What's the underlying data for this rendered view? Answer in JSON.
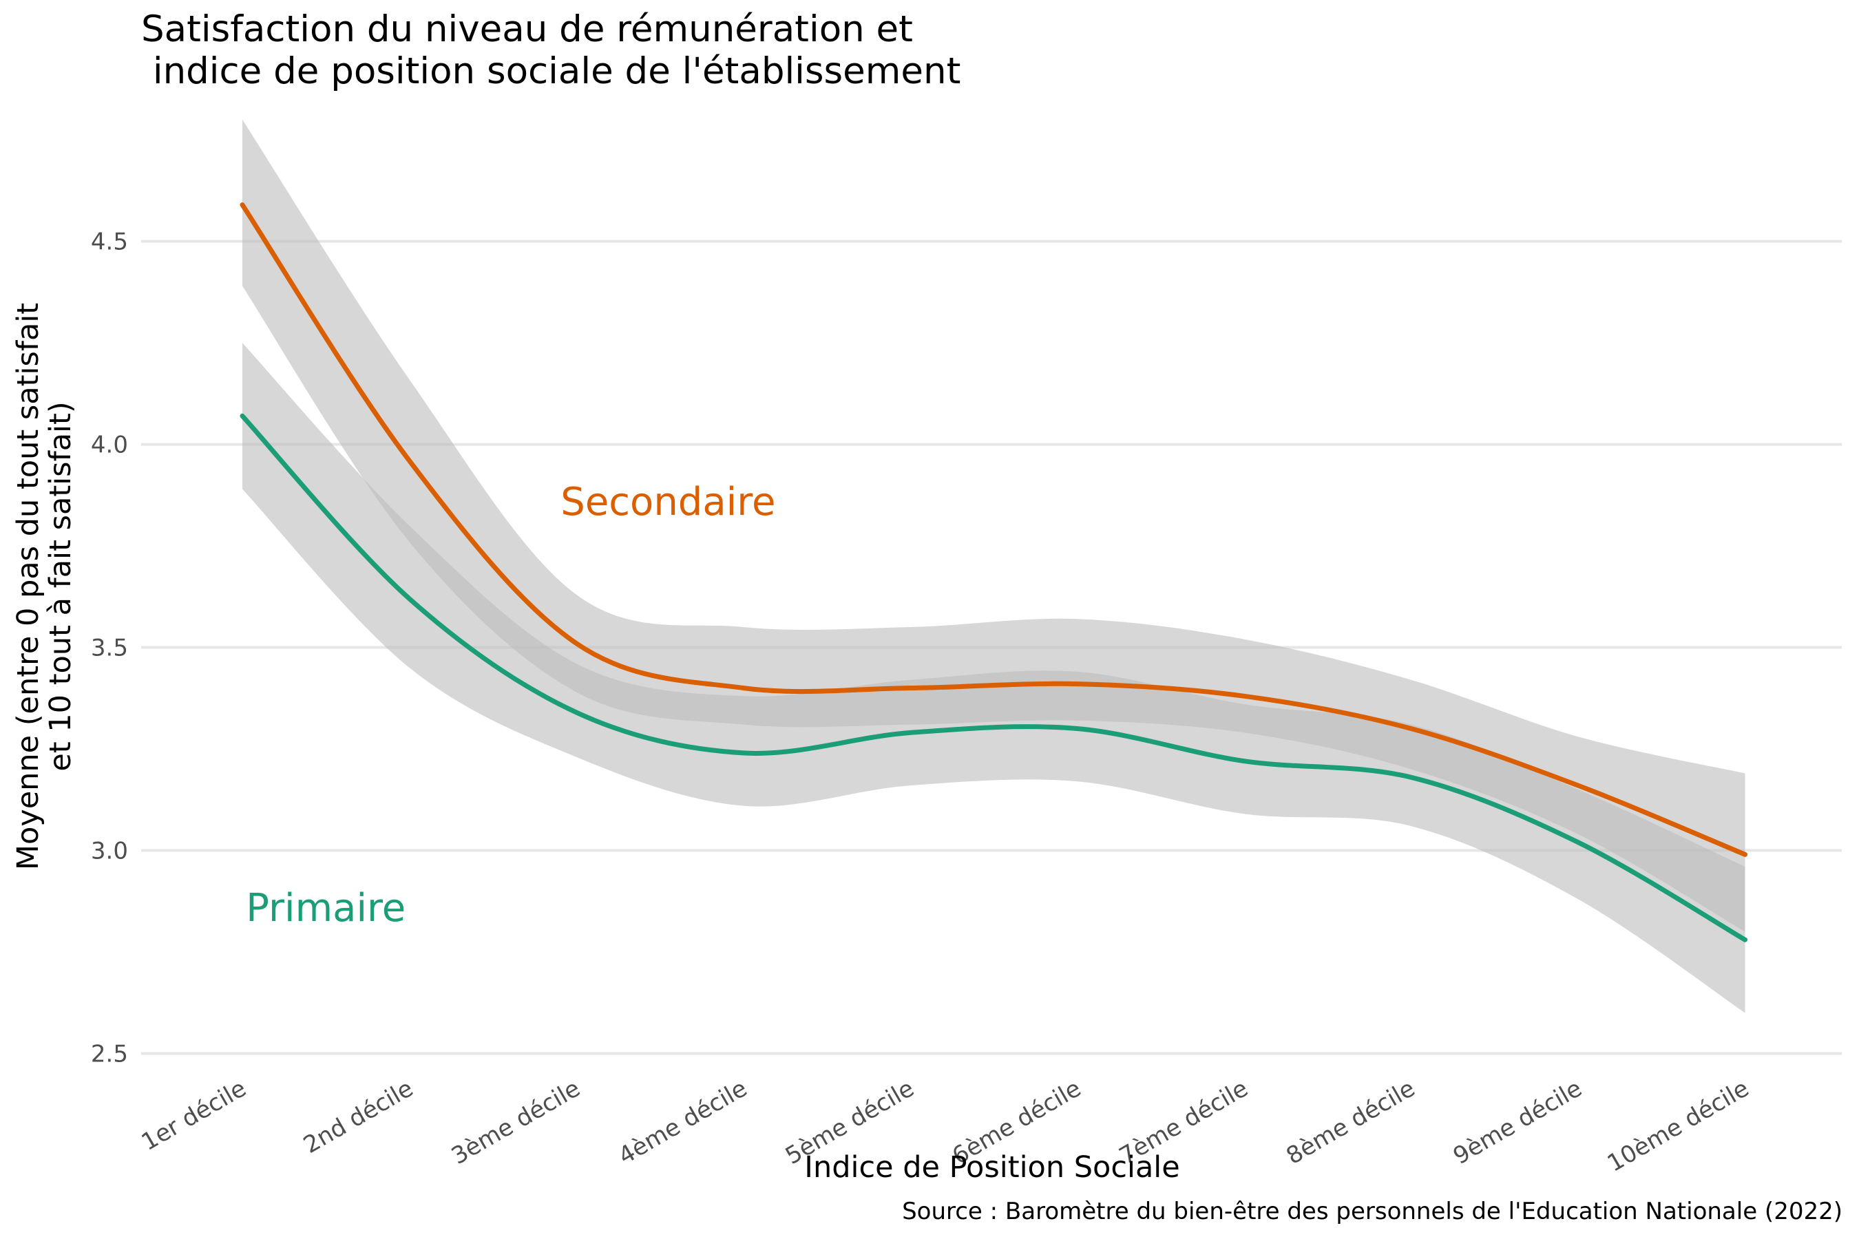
{
  "chart_data": {
    "type": "line",
    "title": [
      "Satisfaction du niveau de rémunération et",
      " indice de position sociale de l'établissement"
    ],
    "xlabel": "Indice de Position Sociale",
    "ylabel": [
      "Moyenne (entre 0 pas du tout satisfait",
      "et 10 tout à fait satisfait)"
    ],
    "caption": "Source : Baromètre du bien-être des personnels de l'Education Nationale (2022)",
    "categories": [
      "1er décile",
      "2nd décile",
      "3ème décile",
      "4ème décile",
      "5ème décile",
      "6ème décile",
      "7ème décile",
      "8ème décile",
      "9ème décile",
      "10ème décile"
    ],
    "ylim": [
      2.45,
      4.84
    ],
    "yticks": [
      "2.5",
      "3.0",
      "3.5",
      "4.0",
      "4.5"
    ],
    "grid": true,
    "legend": "none (direct labels)",
    "series": [
      {
        "name": "Secondaire",
        "color": "#d95f02",
        "values": [
          4.59,
          3.96,
          3.51,
          3.4,
          3.4,
          3.41,
          3.38,
          3.3,
          3.16,
          2.99
        ],
        "ci_lower": [
          4.39,
          3.76,
          3.39,
          3.31,
          3.31,
          3.32,
          3.29,
          3.2,
          3.04,
          2.8
        ],
        "ci_upper": [
          4.8,
          4.16,
          3.63,
          3.55,
          3.55,
          3.57,
          3.52,
          3.42,
          3.28,
          3.19
        ]
      },
      {
        "name": "Primaire",
        "color": "#1b9e77",
        "values": [
          4.07,
          3.62,
          3.34,
          3.24,
          3.29,
          3.3,
          3.22,
          3.18,
          3.02,
          2.78
        ],
        "ci_lower": [
          3.89,
          3.45,
          3.23,
          3.11,
          3.16,
          3.17,
          3.09,
          3.06,
          2.88,
          2.6
        ],
        "ci_upper": [
          4.25,
          3.8,
          3.46,
          3.38,
          3.42,
          3.44,
          3.36,
          3.31,
          3.15,
          2.96
        ]
      }
    ],
    "annotations": [
      {
        "text": "Secondaire",
        "color": "#d95f02",
        "x_pos": 3.05,
        "y": 3.86
      },
      {
        "text": "Primaire",
        "color": "#1b9e77",
        "x_pos": 1.0,
        "y": 2.86
      }
    ]
  }
}
